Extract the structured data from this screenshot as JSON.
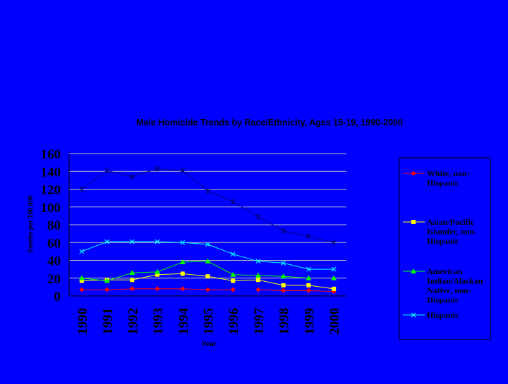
{
  "chart_data": {
    "type": "line",
    "title": "Male Homicide Trends by Race/Ethnicity, Ages 15-19, 1990-2000",
    "xlabel": "Year",
    "ylabel": "Deaths per 100,000",
    "categories": [
      "1990",
      "1991",
      "1992",
      "1993",
      "1994",
      "1995",
      "1996",
      "1997",
      "1998",
      "1999",
      "2000"
    ],
    "ylim": [
      0,
      160
    ],
    "yticks": [
      "0",
      "20",
      "40",
      "60",
      "80",
      "100",
      "120",
      "140",
      "160"
    ],
    "grid": true,
    "legend_position": "right",
    "series": [
      {
        "name": "White, non-Hispanic",
        "color": "#ff0000",
        "marker": "diamond",
        "values": [
          7,
          7,
          8,
          8,
          8,
          7,
          7,
          7,
          6,
          6,
          5
        ],
        "break_before_index": 7
      },
      {
        "name": "Asian/Pacific Islander, non-Hispanic",
        "color": "#ffff00",
        "marker": "square",
        "values": [
          17,
          18,
          18,
          24,
          25,
          22,
          17,
          18,
          12,
          12,
          8
        ]
      },
      {
        "name": "American Indian/Alaskan Native, non-Hispanic",
        "color": "#00ff00",
        "marker": "triangle",
        "values": [
          20,
          17,
          26,
          27,
          38,
          39,
          24,
          23,
          22,
          20,
          20
        ],
        "break_before_index": 10
      },
      {
        "name": "Hispanic",
        "color": "#00ffff",
        "marker": "x",
        "values": [
          50,
          61,
          61,
          61,
          60,
          58,
          47,
          39,
          37,
          30,
          30
        ]
      },
      {
        "name": "",
        "color": "#000080",
        "marker": "star",
        "values": [
          120,
          141,
          134,
          143,
          141,
          118,
          106,
          89,
          73,
          67,
          60
        ]
      }
    ],
    "legend": [
      {
        "text": "White, non-\nHispanic"
      },
      {
        "text": "Asian/Pacific\nIslander, non-\nHispanic"
      },
      {
        "text": "American\nIndian/Alaskan\nNative, non-\nHispanic"
      },
      {
        "text": "Hispanic"
      }
    ]
  }
}
